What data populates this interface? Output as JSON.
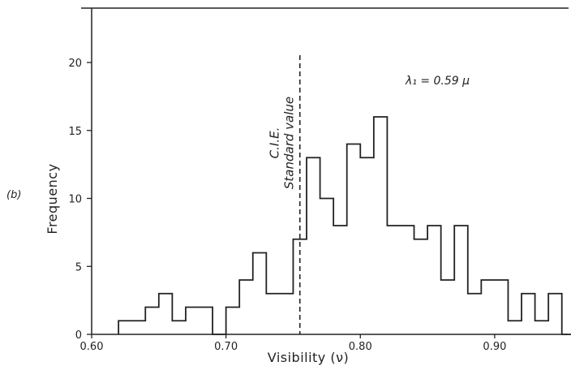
{
  "panel_label": "(b)",
  "chart_data": {
    "type": "histogram",
    "xlabel": "Visibility (ν)",
    "ylabel": "Frequency",
    "xlim": [
      0.6,
      0.955
    ],
    "ylim": [
      0,
      24
    ],
    "x_ticks": [
      {
        "value": 0.6,
        "label": "0.60"
      },
      {
        "value": 0.7,
        "label": "0.70"
      },
      {
        "value": 0.8,
        "label": "0.80"
      },
      {
        "value": 0.9,
        "label": "0.90"
      }
    ],
    "y_ticks": [
      {
        "value": 0,
        "label": "0"
      },
      {
        "value": 5,
        "label": "5"
      },
      {
        "value": 10,
        "label": "10"
      },
      {
        "value": 15,
        "label": "15"
      },
      {
        "value": 20,
        "label": "20"
      }
    ],
    "bin_width": 0.01,
    "bin_starts": [
      0.62,
      0.63,
      0.64,
      0.65,
      0.66,
      0.67,
      0.68,
      0.69,
      0.7,
      0.71,
      0.72,
      0.73,
      0.74,
      0.75,
      0.76,
      0.77,
      0.78,
      0.79,
      0.8,
      0.81,
      0.82,
      0.83,
      0.84,
      0.85,
      0.86,
      0.87,
      0.88,
      0.89,
      0.9,
      0.91,
      0.92,
      0.93,
      0.94,
      0.95
    ],
    "counts": [
      1,
      1,
      2,
      3,
      1,
      2,
      2,
      0,
      2,
      4,
      6,
      3,
      3,
      7,
      13,
      10,
      8,
      14,
      13,
      16,
      8,
      8,
      7,
      8,
      4,
      8,
      3,
      4,
      4,
      1,
      3,
      1,
      3,
      0
    ],
    "reference_line": {
      "value": 0.755,
      "label_line1": "C.I.E.",
      "label_line2": "Standard value"
    },
    "annotation": "λ₁ = 0.59 μ",
    "line_color": "#222222"
  }
}
